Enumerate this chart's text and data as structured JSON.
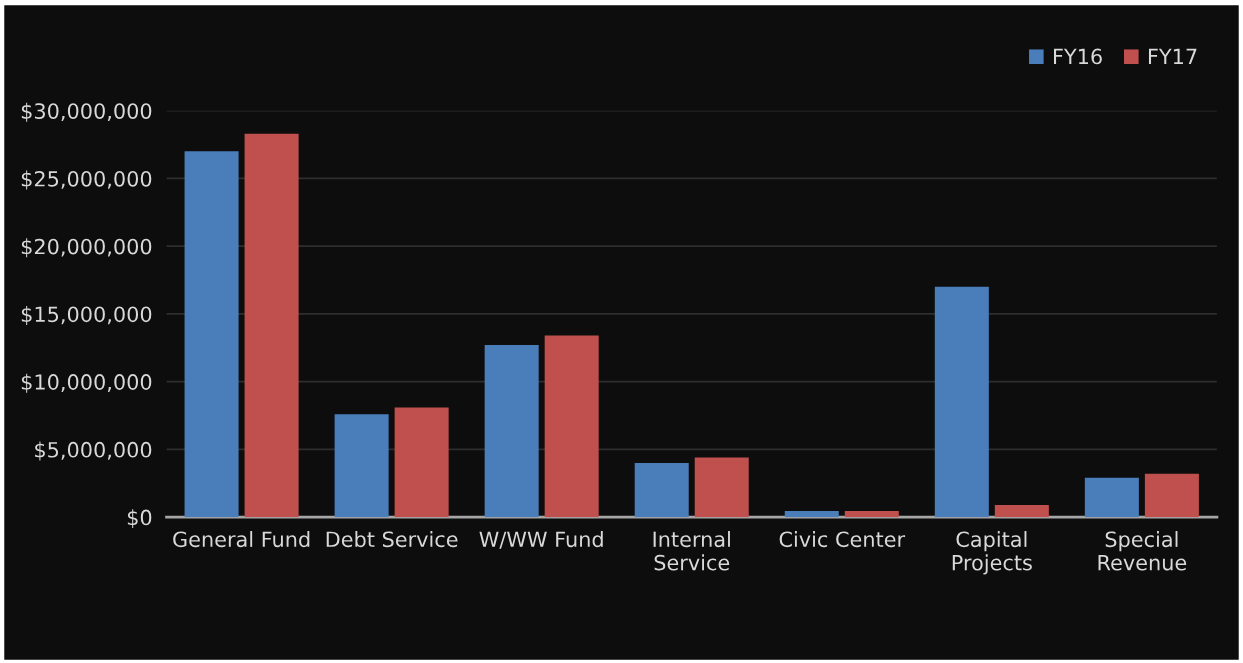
{
  "chart_data": {
    "type": "bar",
    "categories": [
      "General Fund",
      "Debt Service",
      "W/WW Fund",
      "Internal\nService",
      "Civic Center",
      "Capital\nProjects",
      "Special\nRevenue"
    ],
    "series": [
      {
        "name": "FY16",
        "color": "#4a7ebb",
        "values": [
          27000000,
          7600000,
          12700000,
          4000000,
          450000,
          17000000,
          2900000
        ]
      },
      {
        "name": "FY17",
        "color": "#c0504d",
        "values": [
          28300000,
          8100000,
          13400000,
          4400000,
          450000,
          900000,
          3200000
        ]
      }
    ],
    "ylim": [
      0,
      30000000
    ],
    "yticks": [
      {
        "value": 0,
        "label": "$0"
      },
      {
        "value": 5000000,
        "label": "$5,000,000"
      },
      {
        "value": 10000000,
        "label": "$10,000,000"
      },
      {
        "value": 15000000,
        "label": "$15,000,000"
      },
      {
        "value": 20000000,
        "label": "$20,000,000"
      },
      {
        "value": 25000000,
        "label": "$25,000,000"
      },
      {
        "value": 30000000,
        "label": "$30,000,000"
      }
    ],
    "grid": "y",
    "legend": "top right"
  }
}
